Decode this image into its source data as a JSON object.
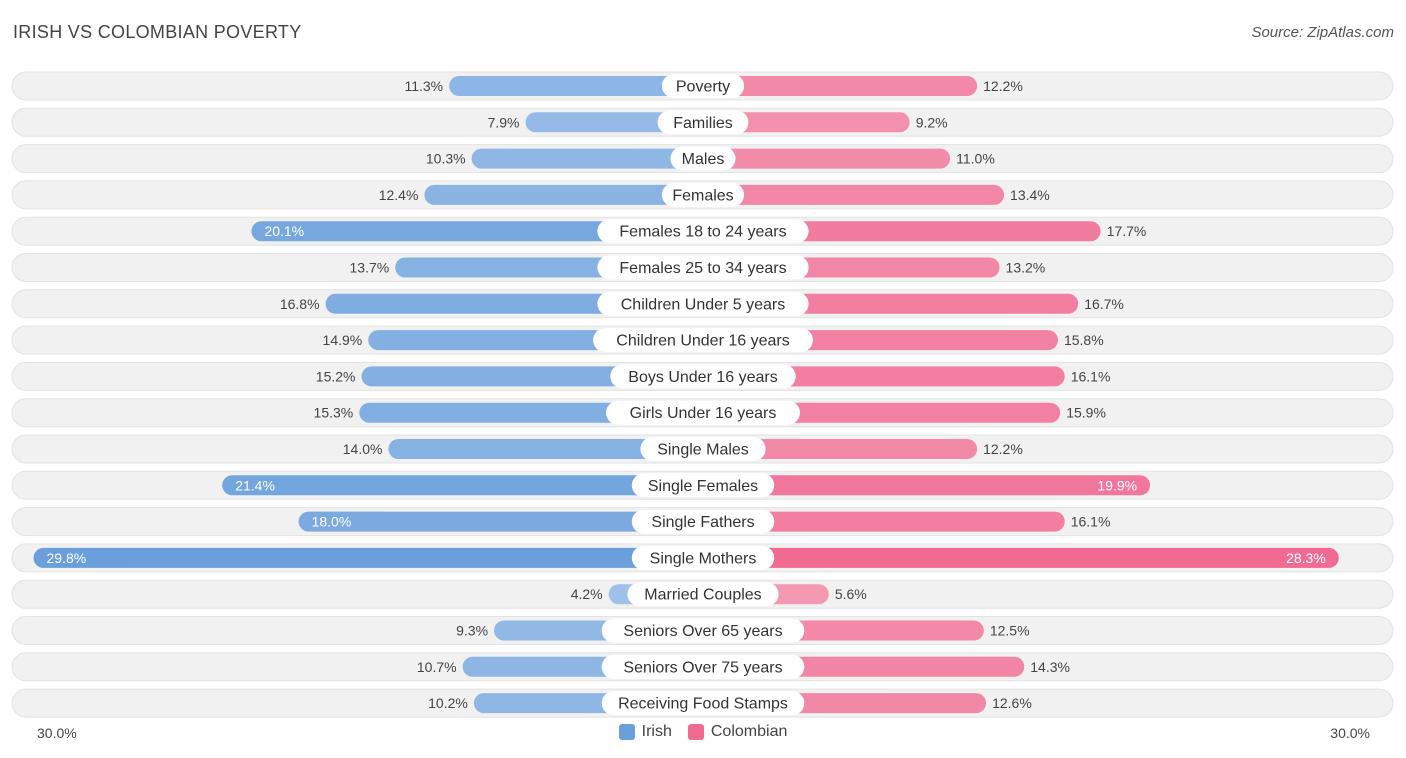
{
  "header": {
    "title": "IRISH VS COLOMBIAN POVERTY",
    "source": "Source: ZipAtlas.com"
  },
  "colors": {
    "irish": "#6a9fdc",
    "irish_light": "#a9c7ec",
    "colombian": "#f06a93",
    "colombian_light": "#f5a6be",
    "row_bg": "#f1f1f1"
  },
  "chart_data": {
    "type": "bar",
    "orientation": "diverging-horizontal",
    "title": "IRISH VS COLOMBIAN POVERTY",
    "xlim": [
      0,
      30.0
    ],
    "axis_left_label": "30.0%",
    "axis_right_label": "30.0%",
    "categories": [
      "Poverty",
      "Families",
      "Males",
      "Females",
      "Females 18 to 24 years",
      "Females 25 to 34 years",
      "Children Under 5 years",
      "Children Under 16 years",
      "Boys Under 16 years",
      "Girls Under 16 years",
      "Single Males",
      "Single Females",
      "Single Fathers",
      "Single Mothers",
      "Married Couples",
      "Seniors Over 65 years",
      "Seniors Over 75 years",
      "Receiving Food Stamps"
    ],
    "series": [
      {
        "name": "Irish",
        "values": [
          11.3,
          7.9,
          10.3,
          12.4,
          20.1,
          13.7,
          16.8,
          14.9,
          15.2,
          15.3,
          14.0,
          21.4,
          18.0,
          29.8,
          4.2,
          9.3,
          10.7,
          10.2
        ],
        "labels": [
          "11.3%",
          "7.9%",
          "10.3%",
          "12.4%",
          "20.1%",
          "13.7%",
          "16.8%",
          "14.9%",
          "15.2%",
          "15.3%",
          "14.0%",
          "21.4%",
          "18.0%",
          "29.8%",
          "4.2%",
          "9.3%",
          "10.7%",
          "10.2%"
        ]
      },
      {
        "name": "Colombian",
        "values": [
          12.2,
          9.2,
          11.0,
          13.4,
          17.7,
          13.2,
          16.7,
          15.8,
          16.1,
          15.9,
          12.2,
          19.9,
          16.1,
          28.3,
          5.6,
          12.5,
          14.3,
          12.6
        ],
        "labels": [
          "12.2%",
          "9.2%",
          "11.0%",
          "13.4%",
          "17.7%",
          "13.2%",
          "16.7%",
          "15.8%",
          "16.1%",
          "15.9%",
          "12.2%",
          "19.9%",
          "16.1%",
          "28.3%",
          "5.6%",
          "12.5%",
          "14.3%",
          "12.6%"
        ]
      }
    ],
    "legend": [
      "Irish",
      "Colombian"
    ],
    "legend_position": "bottom-center"
  }
}
